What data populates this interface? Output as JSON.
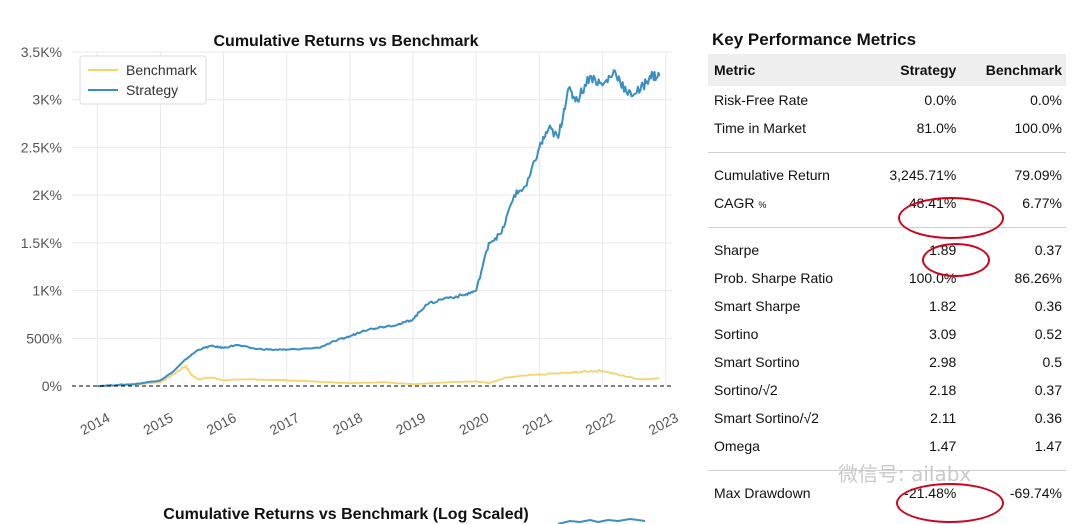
{
  "chart_data": [
    {
      "type": "line",
      "title": "Cumulative Returns vs Benchmark",
      "xlabel": "",
      "ylabel": "",
      "x_ticks": [
        "2014",
        "2015",
        "2016",
        "2017",
        "2018",
        "2019",
        "2020",
        "2021",
        "2022",
        "2023"
      ],
      "y_ticks": [
        "0%",
        "500%",
        "1K%",
        "1.5K%",
        "2K%",
        "2.5K%",
        "3K%",
        "3.5K%"
      ],
      "xlim": [
        2013.6,
        2023.1
      ],
      "ylim": [
        -60,
        3500
      ],
      "grid": true,
      "legend_position": "top-left",
      "baseline": 0,
      "series": [
        {
          "name": "Benchmark",
          "color": "#f6d36b",
          "x": [
            2014.0,
            2014.5,
            2015.0,
            2015.2,
            2015.4,
            2015.5,
            2015.6,
            2015.8,
            2016.0,
            2016.5,
            2017.0,
            2017.5,
            2018.0,
            2018.5,
            2019.0,
            2019.3,
            2019.6,
            2020.0,
            2020.2,
            2020.5,
            2021.0,
            2021.5,
            2021.8,
            2022.0,
            2022.3,
            2022.6,
            2022.9
          ],
          "values": [
            0,
            10,
            40,
            120,
            210,
            110,
            70,
            90,
            60,
            70,
            60,
            45,
            30,
            40,
            20,
            30,
            40,
            50,
            30,
            90,
            120,
            140,
            155,
            160,
            110,
            70,
            80
          ]
        },
        {
          "name": "Strategy",
          "color": "#3a8fc2",
          "x": [
            2014.0,
            2014.3,
            2014.6,
            2015.0,
            2015.2,
            2015.4,
            2015.6,
            2015.8,
            2016.0,
            2016.2,
            2016.5,
            2016.8,
            2017.0,
            2017.5,
            2017.8,
            2018.0,
            2018.2,
            2018.5,
            2018.8,
            2019.0,
            2019.2,
            2019.5,
            2019.8,
            2020.0,
            2020.2,
            2020.4,
            2020.6,
            2020.8,
            2021.0,
            2021.15,
            2021.3,
            2021.45,
            2021.6,
            2021.8,
            2022.0,
            2022.2,
            2022.4,
            2022.6,
            2022.75,
            2022.9
          ],
          "values": [
            0,
            10,
            20,
            60,
            150,
            280,
            380,
            420,
            400,
            430,
            390,
            380,
            380,
            400,
            480,
            520,
            580,
            620,
            650,
            700,
            850,
            920,
            950,
            1000,
            1500,
            1600,
            2000,
            2100,
            2500,
            2700,
            2600,
            3100,
            3000,
            3250,
            3150,
            3300,
            3050,
            3100,
            3250,
            3250
          ]
        }
      ]
    },
    {
      "type": "line",
      "title": "Cumulative Returns vs Benchmark (Log Scaled)",
      "partially_visible": true
    }
  ],
  "metrics": {
    "title": "Key Performance Metrics",
    "header": [
      "Metric",
      "Strategy",
      "Benchmark"
    ],
    "groups": [
      [
        {
          "label": "Risk-Free Rate",
          "strategy": "0.0%",
          "benchmark": "0.0%"
        },
        {
          "label": "Time in Market",
          "strategy": "81.0%",
          "benchmark": "100.0%"
        }
      ],
      [
        {
          "label": "Cumulative Return",
          "strategy": "3,245.71%",
          "benchmark": "79.09%"
        },
        {
          "label": "CAGR",
          "label_suffix": "%",
          "strategy": "48.41%",
          "benchmark": "6.77%"
        }
      ],
      [
        {
          "label": "Sharpe",
          "strategy": "1.89",
          "benchmark": "0.37"
        },
        {
          "label": "Prob. Sharpe Ratio",
          "strategy": "100.0%",
          "benchmark": "86.26%"
        },
        {
          "label": "Smart Sharpe",
          "strategy": "1.82",
          "benchmark": "0.36"
        },
        {
          "label": "Sortino",
          "strategy": "3.09",
          "benchmark": "0.52"
        },
        {
          "label": "Smart Sortino",
          "strategy": "2.98",
          "benchmark": "0.5"
        },
        {
          "label": "Sortino/√2",
          "strategy": "2.18",
          "benchmark": "0.37"
        },
        {
          "label": "Smart Sortino/√2",
          "strategy": "2.11",
          "benchmark": "0.36"
        },
        {
          "label": "Omega",
          "strategy": "1.47",
          "benchmark": "1.47"
        }
      ],
      [
        {
          "label": "Max Drawdown",
          "strategy": "-21.48%",
          "benchmark": "-69.74%"
        }
      ]
    ]
  },
  "annotations": {
    "highlight_color": "#d0021b"
  },
  "watermark": "微信号: ailabx"
}
